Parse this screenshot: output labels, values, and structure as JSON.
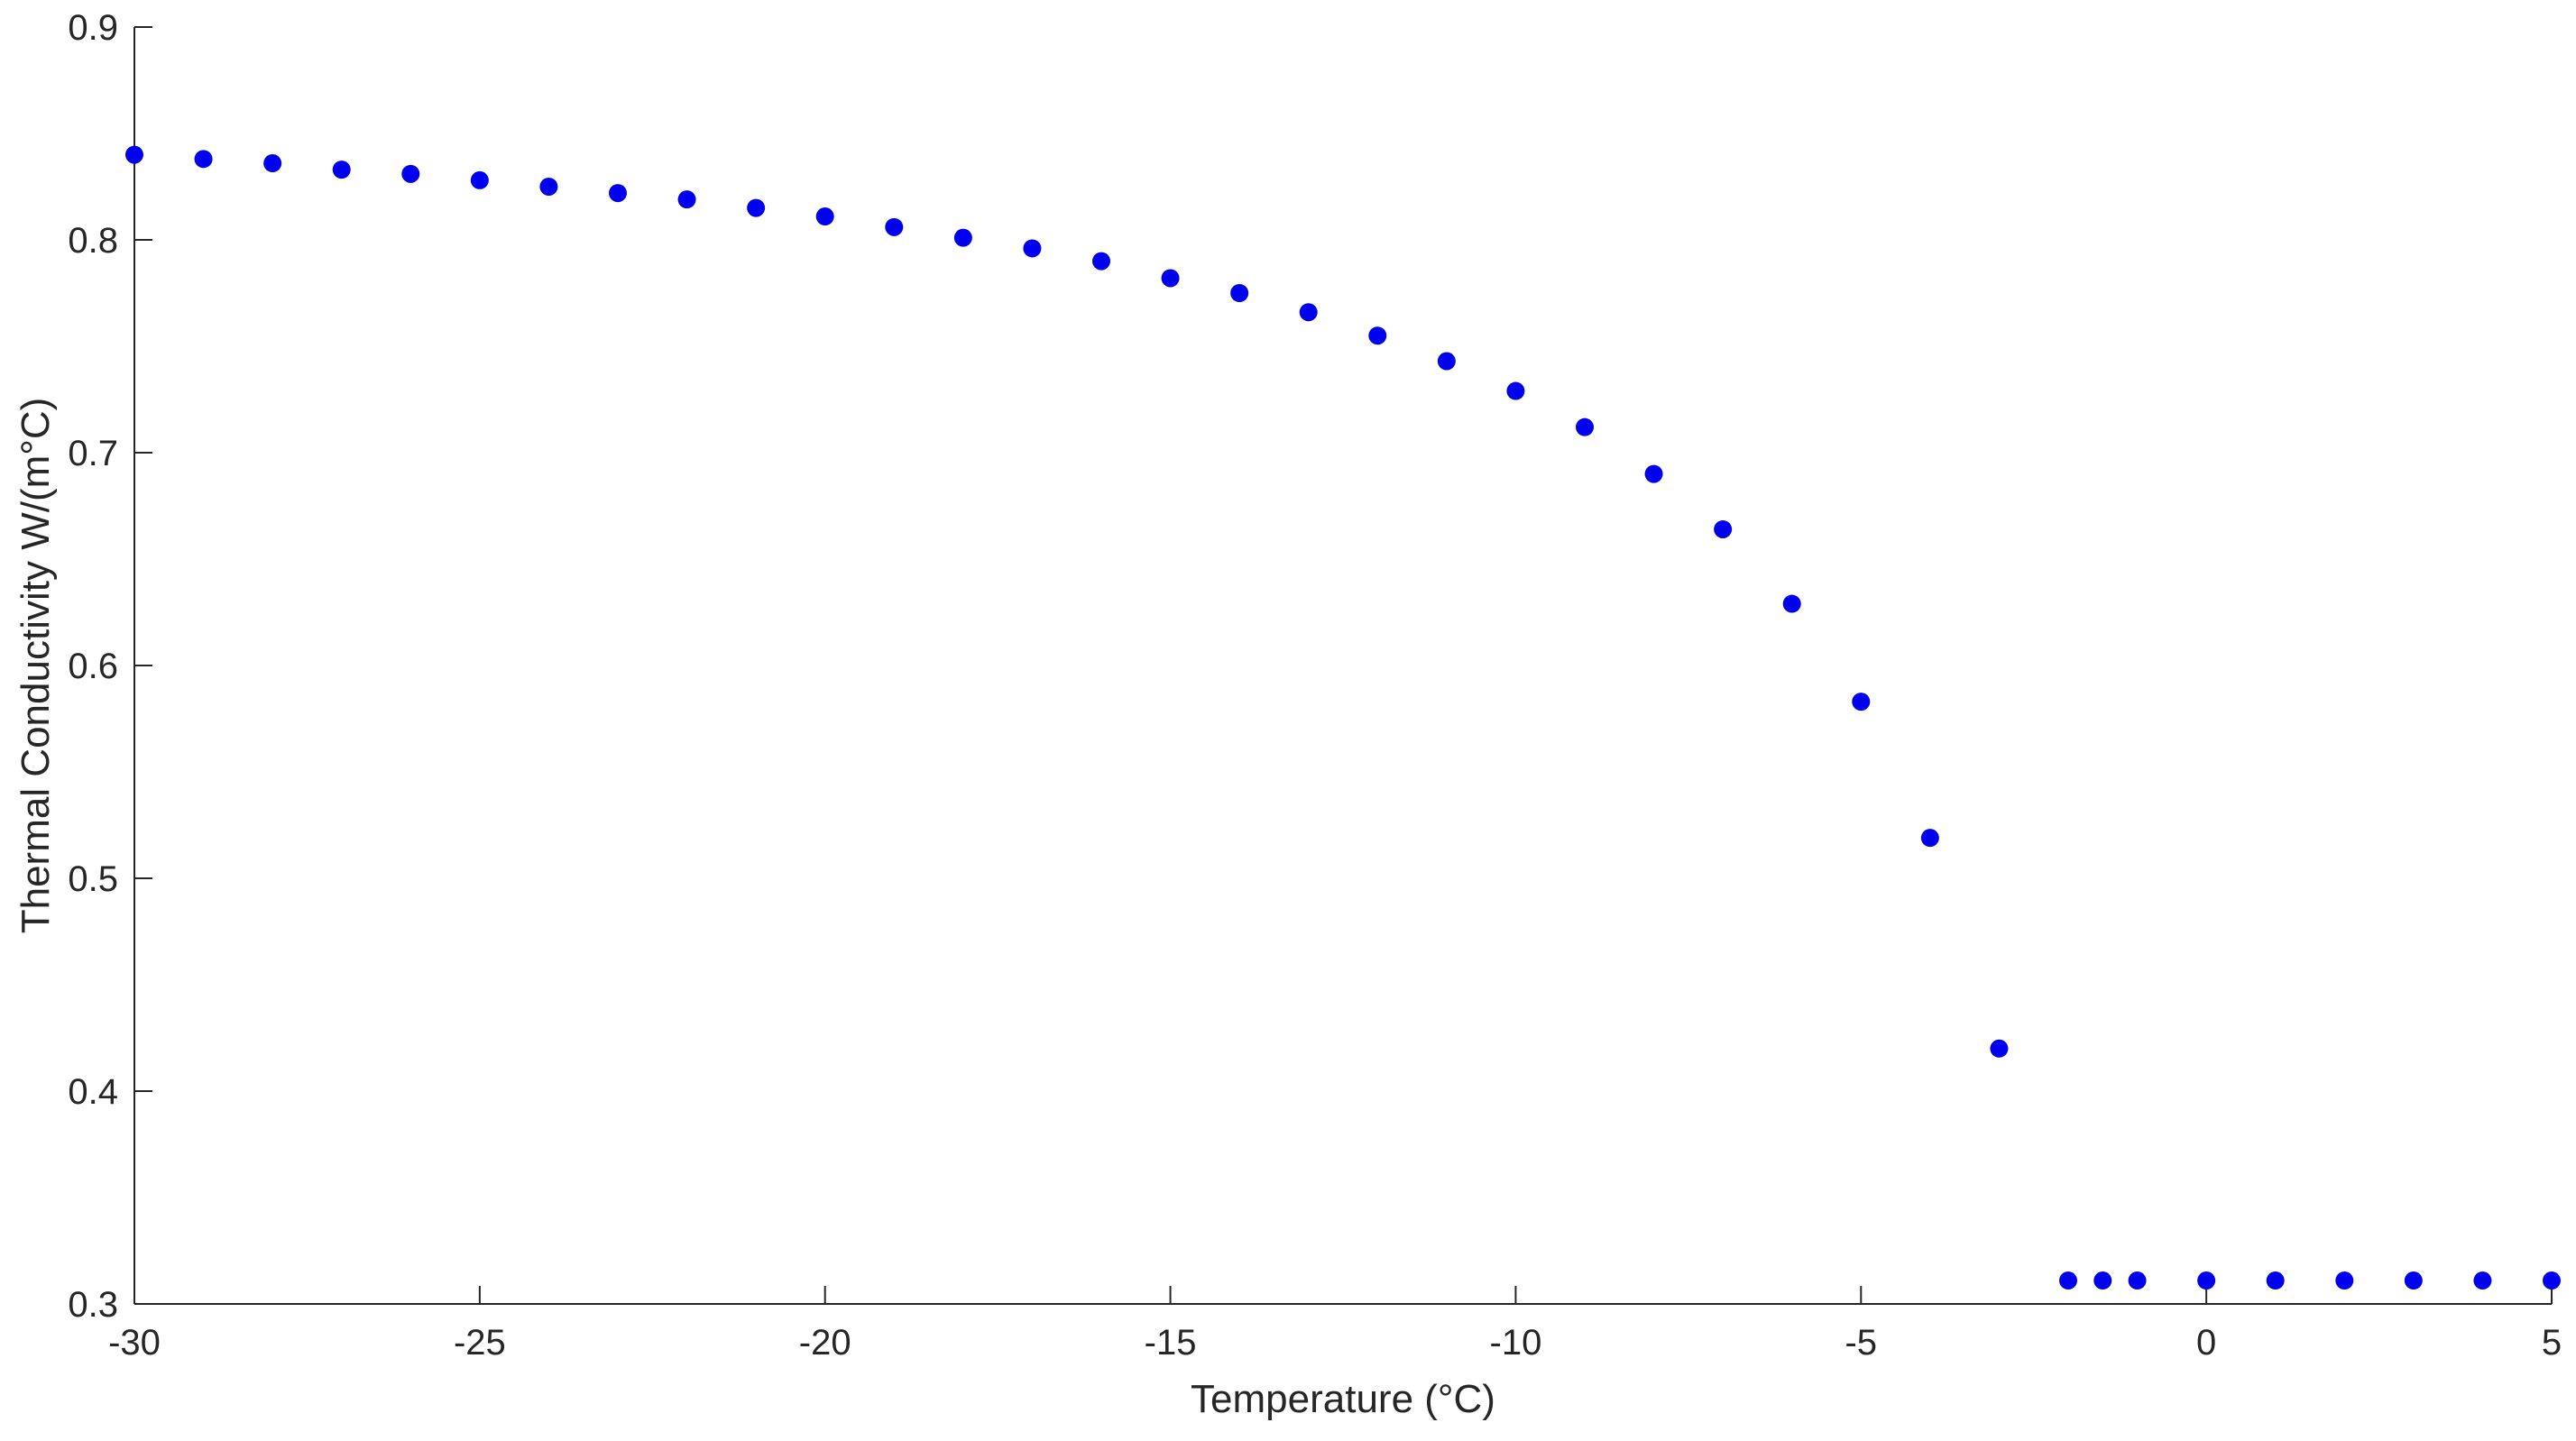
{
  "chart_data": {
    "type": "scatter",
    "title": "",
    "xlabel": "Temperature (°C)",
    "ylabel": "Thermal Conductivity W/(m°C)",
    "xlim": [
      -30,
      5
    ],
    "ylim": [
      0.3,
      0.9
    ],
    "xticks": [
      -30,
      -25,
      -20,
      -15,
      -10,
      -5,
      0,
      5
    ],
    "yticks": [
      0.3,
      0.4,
      0.5,
      0.6,
      0.7,
      0.8,
      0.9
    ],
    "xtick_labels": [
      "-30",
      "-25",
      "-20",
      "-15",
      "-10",
      "-5",
      "0",
      "5"
    ],
    "ytick_labels": [
      "0.3",
      "0.4",
      "0.5",
      "0.6",
      "0.7",
      "0.8",
      "0.9"
    ],
    "grid": false,
    "marker_color": "#0000ee",
    "axis_color": "#262626",
    "series": [
      {
        "x": [
          -30,
          -29,
          -28,
          -27,
          -26,
          -25,
          -24,
          -23,
          -22,
          -21,
          -20,
          -19,
          -18,
          -17,
          -16,
          -15,
          -14,
          -13,
          -12,
          -11,
          -10,
          -9,
          -8,
          -7,
          -6,
          -5,
          -4,
          -3,
          -2,
          -1.5,
          -1,
          0,
          1,
          2,
          3,
          4,
          5
        ],
        "y": [
          0.84,
          0.838,
          0.836,
          0.833,
          0.831,
          0.828,
          0.825,
          0.822,
          0.819,
          0.815,
          0.811,
          0.806,
          0.801,
          0.796,
          0.79,
          0.782,
          0.775,
          0.766,
          0.755,
          0.743,
          0.729,
          0.712,
          0.69,
          0.664,
          0.629,
          0.583,
          0.519,
          0.42,
          0.311,
          0.311,
          0.311,
          0.311,
          0.311,
          0.311,
          0.311,
          0.311,
          0.311
        ]
      }
    ]
  }
}
